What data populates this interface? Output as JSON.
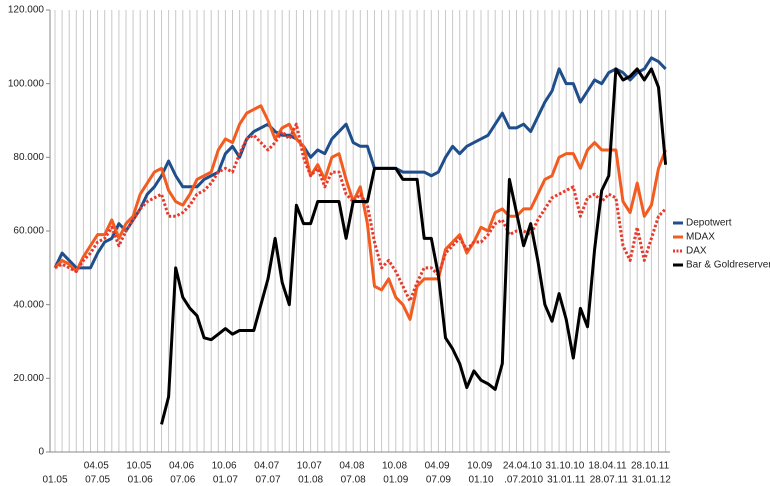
{
  "chart_data": {
    "type": "line",
    "categories": [
      "01.05",
      null,
      null,
      "04.05",
      null,
      null,
      "07.05",
      null,
      null,
      "10.05",
      null,
      null,
      "01.06",
      null,
      null,
      "04.06",
      null,
      null,
      "07.06",
      null,
      null,
      "10.06",
      null,
      null,
      "01.07",
      null,
      null,
      "04.07",
      null,
      null,
      "07.07",
      null,
      null,
      "10.07",
      null,
      null,
      "01.08",
      null,
      null,
      "04.08",
      null,
      null,
      "07.08",
      null,
      null,
      "10.08",
      null,
      null,
      "01.09",
      null,
      null,
      "04.09",
      null,
      null,
      "07.09",
      null,
      null,
      "10.09",
      null,
      null,
      "01.10",
      null,
      null,
      "24.04.10",
      null,
      null,
      ".07.2010",
      null,
      null,
      "31.10.10",
      null,
      null,
      "31.01.11",
      null,
      null,
      "18.04.11",
      null,
      null,
      "28.07.11",
      null,
      null,
      "28.10.11",
      null,
      null,
      "31.01.12",
      null,
      null
    ],
    "series": [
      {
        "name": "Depotwert",
        "color": "#1f4e8c",
        "linestyle": "solid",
        "values": [
          50000,
          54000,
          52000,
          50000,
          50000,
          50000,
          54000,
          57000,
          58000,
          62000,
          60000,
          63000,
          66000,
          70000,
          72000,
          75000,
          79000,
          75000,
          72000,
          72000,
          72000,
          74000,
          75000,
          76000,
          81000,
          83000,
          80000,
          85000,
          87000,
          88000,
          89000,
          87000,
          86000,
          86000,
          85000,
          83000,
          80000,
          82000,
          81000,
          85000,
          87000,
          89000,
          84000,
          83000,
          83000,
          77000,
          77000,
          77000,
          77000,
          76000,
          76000,
          76000,
          76000,
          75000,
          76000,
          80000,
          83000,
          81000,
          83000,
          84000,
          85000,
          86000,
          89000,
          92000,
          88000,
          88000,
          89000,
          87000,
          91000,
          95000,
          98000,
          104000,
          100000,
          100000,
          95000,
          98000,
          101000,
          100000,
          103000,
          104000,
          103000,
          101000,
          103000,
          104000,
          107000,
          106000,
          104000
        ]
      },
      {
        "name": "MDAX",
        "color": "#f25c20",
        "linestyle": "solid",
        "values": [
          50000,
          52000,
          51000,
          49000,
          53000,
          56000,
          59000,
          59000,
          63000,
          58000,
          62000,
          64000,
          70000,
          73000,
          76000,
          77000,
          71000,
          68000,
          67000,
          70000,
          74000,
          75000,
          76000,
          82000,
          85000,
          84000,
          89000,
          92000,
          93000,
          94000,
          90000,
          85000,
          88000,
          89000,
          85000,
          83000,
          75000,
          78000,
          74000,
          80000,
          81000,
          74000,
          68000,
          72000,
          62000,
          45000,
          44000,
          47000,
          42000,
          40000,
          36000,
          45000,
          47000,
          47000,
          47000,
          55000,
          57000,
          59000,
          54000,
          57000,
          61000,
          60000,
          65000,
          66000,
          64000,
          64000,
          66000,
          66000,
          70000,
          74000,
          75000,
          80000,
          81000,
          81000,
          77000,
          82000,
          84000,
          82000,
          82000,
          82000,
          68000,
          65000,
          73000,
          64000,
          67000,
          77000,
          82000
        ]
      },
      {
        "name": "DAX",
        "color": "#e83a2a",
        "linestyle": "dotted",
        "values": [
          50000,
          51000,
          50000,
          49000,
          52000,
          54000,
          57000,
          58000,
          61000,
          56000,
          60000,
          63000,
          66000,
          68000,
          69000,
          70000,
          64000,
          64000,
          65000,
          67000,
          70000,
          71000,
          73000,
          76000,
          77000,
          76000,
          81000,
          85000,
          86000,
          84000,
          82000,
          84000,
          87000,
          85000,
          89000,
          80000,
          75000,
          77000,
          72000,
          76000,
          76000,
          70000,
          68000,
          70000,
          67000,
          57000,
          50000,
          52000,
          49000,
          45000,
          41000,
          46000,
          50000,
          50000,
          48000,
          54000,
          56000,
          58000,
          55000,
          57000,
          57000,
          59000,
          62000,
          63000,
          59000,
          60000,
          60000,
          59000,
          63000,
          66000,
          69000,
          70000,
          71000,
          72000,
          64000,
          69000,
          70000,
          68000,
          70000,
          69000,
          56000,
          52000,
          61000,
          52000,
          58000,
          64000,
          66000
        ]
      },
      {
        "name": "Bar & Goldreserven",
        "color": "#000000",
        "linestyle": "solid",
        "values": [
          null,
          null,
          null,
          null,
          null,
          null,
          null,
          null,
          null,
          null,
          null,
          null,
          null,
          null,
          null,
          7500,
          15000,
          50000,
          42000,
          39000,
          37000,
          31000,
          30500,
          32000,
          33500,
          32000,
          33000,
          33000,
          33000,
          40000,
          47000,
          58000,
          46000,
          40000,
          67000,
          62000,
          62000,
          68000,
          68000,
          68000,
          68000,
          58000,
          68000,
          68000,
          68000,
          77000,
          77000,
          77000,
          77000,
          74000,
          74000,
          74000,
          58000,
          58000,
          48000,
          31000,
          28000,
          24000,
          17500,
          22000,
          19500,
          18500,
          17000,
          24000,
          74000,
          65000,
          56000,
          62000,
          52000,
          40000,
          35500,
          43000,
          36000,
          25500,
          39000,
          34000,
          55000,
          71000,
          75000,
          104000,
          101000,
          102000,
          104000,
          101000,
          104000,
          99000,
          78000
        ]
      }
    ],
    "ylim": [
      0,
      120000
    ],
    "yticks": [
      0,
      {
        "value": 20000,
        "label": "20.000"
      },
      {
        "value": 40000,
        "label": "40.000"
      },
      {
        "value": 60000,
        "label": "60.000"
      },
      {
        "value": 80000,
        "label": "80.000"
      },
      {
        "value": 100000,
        "label": "100.000"
      },
      {
        "value": 120000,
        "label": "120.000"
      }
    ],
    "grid": true,
    "legend": "right"
  }
}
